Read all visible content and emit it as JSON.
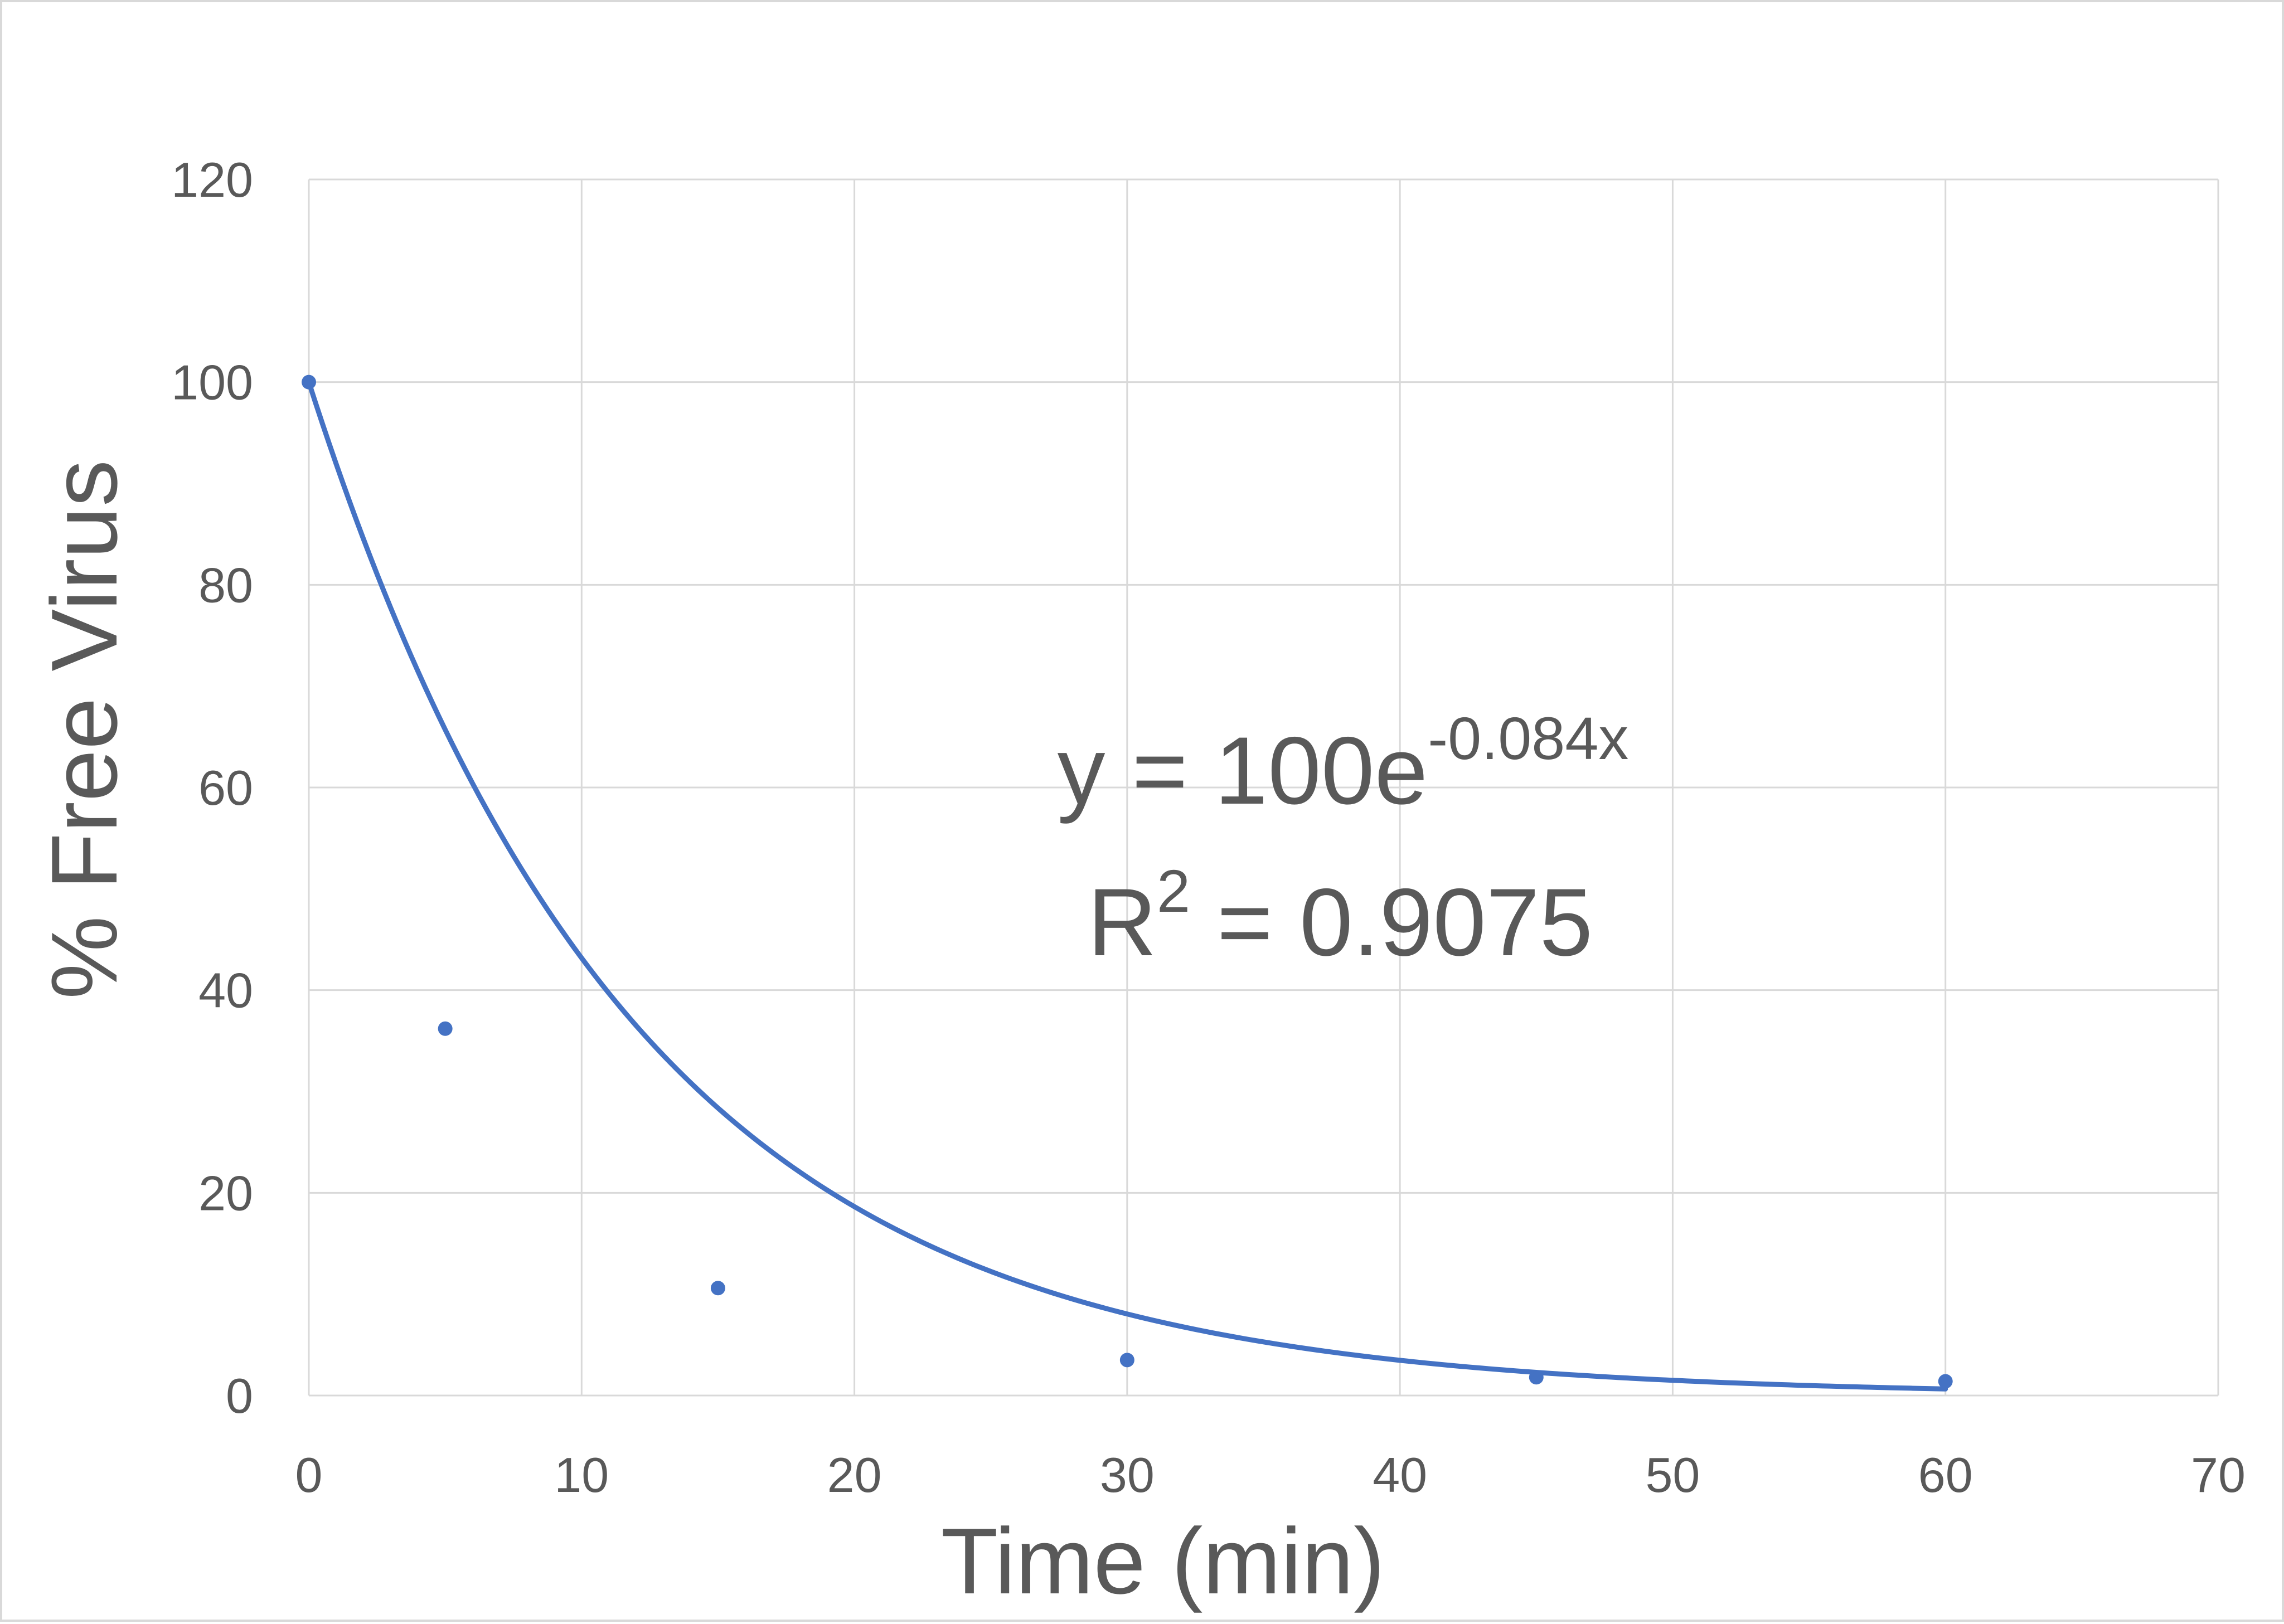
{
  "chart_data": {
    "type": "scatter",
    "title": "",
    "xlabel": "Time (min)",
    "ylabel": "% Free Virus",
    "xlim": [
      0,
      70
    ],
    "ylim": [
      0,
      120
    ],
    "x_ticks": [
      "0",
      "10",
      "20",
      "30",
      "40",
      "50",
      "60",
      "70"
    ],
    "y_ticks": [
      "0",
      "20",
      "40",
      "60",
      "80",
      "100",
      "120"
    ],
    "grid": true,
    "legend": "none",
    "series": [
      {
        "x": [
          0,
          5,
          15,
          30,
          45,
          60
        ],
        "y": [
          100,
          36.2,
          10.6,
          3.5,
          1.8,
          1.4
        ],
        "color": "#4472c4"
      }
    ],
    "trendline": {
      "type": "exponential",
      "a": 100,
      "b": -0.084,
      "x_range": [
        0,
        60
      ],
      "color": "#4472c4",
      "equation": {
        "base": "y = 100e",
        "exponent": "-0.084x"
      },
      "r_squared": {
        "base": "R",
        "superscript": "2",
        "rest": " = 0.9075"
      }
    }
  }
}
